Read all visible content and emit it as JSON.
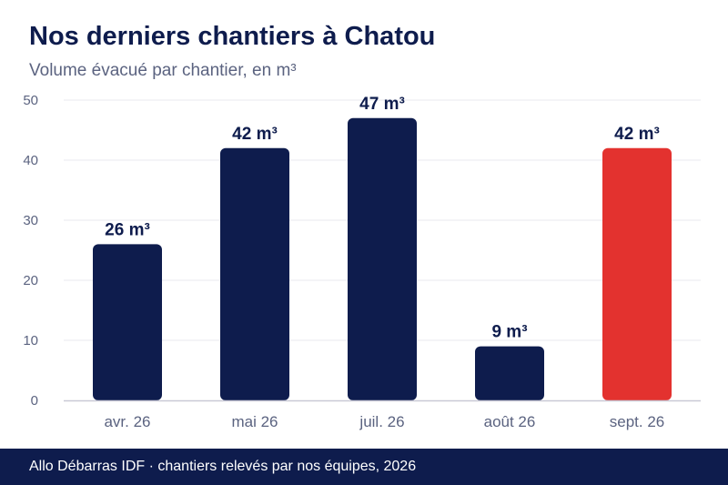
{
  "header": {
    "title": "Nos derniers chantiers à Chatou",
    "subtitle": "Volume évacué par chantier, en m³"
  },
  "footer": {
    "text": "Allo Débarras IDF · chantiers relevés par nos équipes, 2026"
  },
  "chart_data": {
    "type": "bar",
    "title": "Nos derniers chantiers à Chatou",
    "subtitle": "Volume évacué par chantier, en m³",
    "categories": [
      "avr. 26",
      "mai 26",
      "juil. 26",
      "août 26",
      "sept. 26"
    ],
    "values": [
      26,
      42,
      47,
      9,
      42
    ],
    "value_labels": [
      "26 m³",
      "42 m³",
      "47 m³",
      "9 m³",
      "42 m³"
    ],
    "ylim": [
      0,
      50
    ],
    "yticks": [
      0,
      10,
      20,
      30,
      40,
      50
    ],
    "xlabel": "",
    "ylabel": "",
    "grid": true,
    "colors": {
      "bar": "#0e1c4d",
      "highlight": "#e3322f",
      "grid": "#e9e9ef",
      "axis": "#c9c9d6",
      "tick_text": "#5b6380",
      "label_text": "#0e1c4d"
    },
    "highlight_index": 4
  }
}
